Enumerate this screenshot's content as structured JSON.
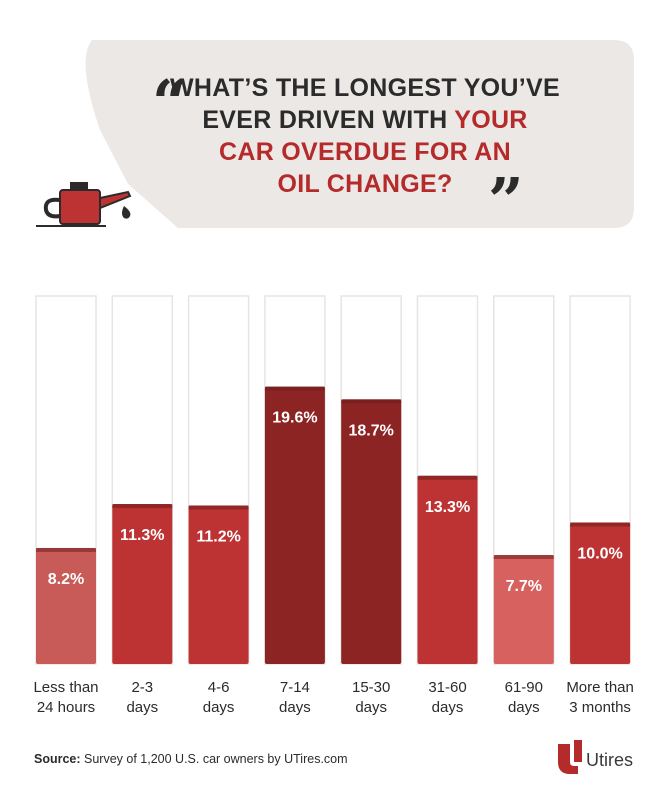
{
  "header": {
    "title_line1": "WHAT’S THE LONGEST YOU’VE",
    "title_line2a": "EVER DRIVEN WITH ",
    "title_line2b": "YOUR",
    "title_line3": "CAR OVERDUE FOR AN",
    "title_line4": "OIL CHANGE?",
    "open_quote": "“",
    "close_quote": "”"
  },
  "chart_data": {
    "type": "bar",
    "title": "WHAT’S THE LONGEST YOU’VE EVER DRIVEN WITH YOUR CAR OVERDUE FOR AN OIL CHANGE?",
    "categories": [
      "Less than 24 hours",
      "2-3 days",
      "4-6 days",
      "7-14 days",
      "15-30 days",
      "31-60 days",
      "61-90 days",
      "More than 3 months"
    ],
    "category_lines": [
      [
        "Less than",
        "24 hours"
      ],
      [
        "2-3",
        "days"
      ],
      [
        "4-6",
        "days"
      ],
      [
        "7-14",
        "days"
      ],
      [
        "15-30",
        "days"
      ],
      [
        "31-60",
        "days"
      ],
      [
        "61-90",
        "days"
      ],
      [
        "More than",
        "3 months"
      ]
    ],
    "values": [
      8.2,
      11.3,
      11.2,
      19.6,
      18.7,
      13.3,
      7.7,
      10.0
    ],
    "labels": [
      "8.2%",
      "11.3%",
      "11.2%",
      "19.6%",
      "18.7%",
      "13.3%",
      "7.7%",
      "10.0%"
    ],
    "ylim": [
      0,
      26
    ],
    "xlabel": "",
    "ylabel": "",
    "grid": false,
    "colors": [
      "#c85a57",
      "#bd3232",
      "#bd3232",
      "#8d2424",
      "#8d2424",
      "#bd3232",
      "#d6615e",
      "#bd3232"
    ]
  },
  "footer": {
    "source_label": "Source:",
    "source_text": " Survey of 1,200 U.S. car owners by UTires.com",
    "logo_text": "Utires"
  },
  "theme": {
    "bubble": "#ece8e6",
    "accent": "#b52a2a",
    "track": "#e8e4e2"
  }
}
